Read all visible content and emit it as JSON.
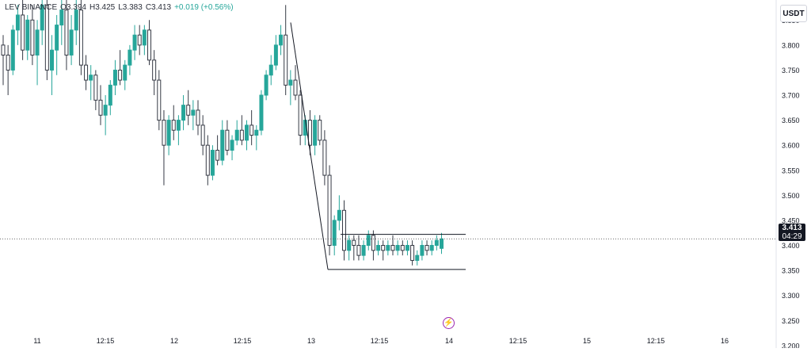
{
  "legend": {
    "symbol_prefix": "LEV",
    "exchange": "BINANCE",
    "open_label": "O",
    "open": "3.394",
    "high_label": "H",
    "high": "3.425",
    "low_label": "L",
    "low": "3.383",
    "close_label": "C",
    "close": "3.413",
    "change": "+0.019 (+0.56%)"
  },
  "currency_button": "USDT",
  "last_price": "3.413",
  "countdown": "04:29",
  "colors": {
    "up": "#26a69a",
    "down": "#363a45",
    "drawing": "#131722",
    "event": "#9c27b0"
  },
  "event_icon": "lightning-icon",
  "chart_data": {
    "type": "candlestick",
    "y_ticks": [
      "3.200",
      "3.250",
      "3.300",
      "3.350",
      "3.400",
      "3.450",
      "3.500",
      "3.550",
      "3.600",
      "3.650",
      "3.700",
      "3.750",
      "3.800",
      "3.850"
    ],
    "x_ticks": [
      "11",
      "12:15",
      "12",
      "12:15",
      "13",
      "12:15",
      "14",
      "12:15",
      "15",
      "12:15",
      "16"
    ],
    "ylim": [
      3.195,
      3.89
    ],
    "last_price": 3.413,
    "grid": false,
    "candles": [
      [
        3.8,
        3.82,
        3.72,
        3.78
      ],
      [
        3.78,
        3.8,
        3.7,
        3.75
      ],
      [
        3.75,
        3.84,
        3.74,
        3.83
      ],
      [
        3.83,
        3.88,
        3.8,
        3.86
      ],
      [
        3.86,
        3.9,
        3.77,
        3.79
      ],
      [
        3.79,
        3.86,
        3.77,
        3.85
      ],
      [
        3.85,
        3.88,
        3.76,
        3.78
      ],
      [
        3.78,
        3.85,
        3.72,
        3.83
      ],
      [
        3.83,
        3.9,
        3.8,
        3.88
      ],
      [
        3.88,
        3.9,
        3.73,
        3.75
      ],
      [
        3.75,
        3.82,
        3.7,
        3.79
      ],
      [
        3.79,
        3.86,
        3.74,
        3.84
      ],
      [
        3.84,
        3.9,
        3.8,
        3.87
      ],
      [
        3.87,
        3.9,
        3.75,
        3.78
      ],
      [
        3.78,
        3.86,
        3.76,
        3.83
      ],
      [
        3.83,
        3.9,
        3.8,
        3.87
      ],
      [
        3.87,
        3.9,
        3.74,
        3.76
      ],
      [
        3.76,
        3.78,
        3.71,
        3.73
      ],
      [
        3.73,
        3.76,
        3.69,
        3.74
      ],
      [
        3.74,
        3.75,
        3.67,
        3.69
      ],
      [
        3.69,
        3.72,
        3.64,
        3.66
      ],
      [
        3.66,
        3.7,
        3.62,
        3.68
      ],
      [
        3.68,
        3.73,
        3.66,
        3.72
      ],
      [
        3.72,
        3.77,
        3.7,
        3.75
      ],
      [
        3.75,
        3.79,
        3.72,
        3.73
      ],
      [
        3.73,
        3.77,
        3.71,
        3.76
      ],
      [
        3.76,
        3.8,
        3.74,
        3.79
      ],
      [
        3.79,
        3.84,
        3.77,
        3.82
      ],
      [
        3.82,
        3.84,
        3.78,
        3.8
      ],
      [
        3.8,
        3.84,
        3.78,
        3.83
      ],
      [
        3.83,
        3.85,
        3.76,
        3.77
      ],
      [
        3.77,
        3.79,
        3.7,
        3.73
      ],
      [
        3.73,
        3.75,
        3.63,
        3.65
      ],
      [
        3.65,
        3.67,
        3.52,
        3.6
      ],
      [
        3.6,
        3.66,
        3.58,
        3.65
      ],
      [
        3.65,
        3.68,
        3.61,
        3.63
      ],
      [
        3.63,
        3.66,
        3.6,
        3.65
      ],
      [
        3.65,
        3.7,
        3.63,
        3.68
      ],
      [
        3.68,
        3.71,
        3.64,
        3.66
      ],
      [
        3.66,
        3.69,
        3.63,
        3.67
      ],
      [
        3.67,
        3.69,
        3.62,
        3.64
      ],
      [
        3.64,
        3.66,
        3.58,
        3.6
      ],
      [
        3.6,
        3.62,
        3.52,
        3.54
      ],
      [
        3.54,
        3.6,
        3.53,
        3.59
      ],
      [
        3.59,
        3.62,
        3.56,
        3.57
      ],
      [
        3.57,
        3.65,
        3.56,
        3.63
      ],
      [
        3.63,
        3.65,
        3.58,
        3.59
      ],
      [
        3.59,
        3.62,
        3.57,
        3.61
      ],
      [
        3.61,
        3.65,
        3.6,
        3.63
      ],
      [
        3.63,
        3.66,
        3.6,
        3.61
      ],
      [
        3.61,
        3.65,
        3.59,
        3.64
      ],
      [
        3.64,
        3.67,
        3.6,
        3.62
      ],
      [
        3.62,
        3.64,
        3.59,
        3.63
      ],
      [
        3.63,
        3.71,
        3.62,
        3.7
      ],
      [
        3.7,
        3.75,
        3.69,
        3.74
      ],
      [
        3.74,
        3.78,
        3.72,
        3.76
      ],
      [
        3.76,
        3.82,
        3.75,
        3.8
      ],
      [
        3.8,
        3.84,
        3.78,
        3.82
      ],
      [
        3.82,
        3.88,
        3.7,
        3.72
      ],
      [
        3.72,
        3.75,
        3.68,
        3.73
      ],
      [
        3.73,
        3.76,
        3.69,
        3.7
      ],
      [
        3.7,
        3.71,
        3.6,
        3.62
      ],
      [
        3.62,
        3.66,
        3.6,
        3.65
      ],
      [
        3.65,
        3.67,
        3.58,
        3.6
      ],
      [
        3.6,
        3.66,
        3.58,
        3.65
      ],
      [
        3.65,
        3.66,
        3.6,
        3.61
      ],
      [
        3.61,
        3.63,
        3.52,
        3.54
      ],
      [
        3.54,
        3.56,
        3.38,
        3.4
      ],
      [
        3.4,
        3.46,
        3.38,
        3.45
      ],
      [
        3.45,
        3.5,
        3.43,
        3.47
      ],
      [
        3.47,
        3.49,
        3.37,
        3.39
      ],
      [
        3.39,
        3.42,
        3.37,
        3.41
      ],
      [
        3.41,
        3.42,
        3.37,
        3.4
      ],
      [
        3.4,
        3.42,
        3.37,
        3.38
      ],
      [
        3.38,
        3.41,
        3.37,
        3.4
      ],
      [
        3.4,
        3.43,
        3.39,
        3.42
      ],
      [
        3.42,
        3.43,
        3.37,
        3.39
      ],
      [
        3.39,
        3.41,
        3.38,
        3.4
      ],
      [
        3.4,
        3.41,
        3.37,
        3.39
      ],
      [
        3.39,
        3.41,
        3.38,
        3.4
      ],
      [
        3.4,
        3.42,
        3.38,
        3.39
      ],
      [
        3.39,
        3.41,
        3.38,
        3.4
      ],
      [
        3.4,
        3.41,
        3.38,
        3.39
      ],
      [
        3.39,
        3.41,
        3.38,
        3.4
      ],
      [
        3.4,
        3.41,
        3.36,
        3.37
      ],
      [
        3.37,
        3.39,
        3.36,
        3.38
      ],
      [
        3.38,
        3.41,
        3.37,
        3.4
      ],
      [
        3.4,
        3.41,
        3.38,
        3.39
      ],
      [
        3.39,
        3.41,
        3.38,
        3.4
      ],
      [
        3.4,
        3.42,
        3.39,
        3.41
      ],
      [
        3.394,
        3.425,
        3.383,
        3.413
      ]
    ],
    "trendline": {
      "from_price": 3.845,
      "to_price": 3.352
    },
    "range_box": {
      "top": 3.422,
      "bottom": 3.352
    }
  }
}
